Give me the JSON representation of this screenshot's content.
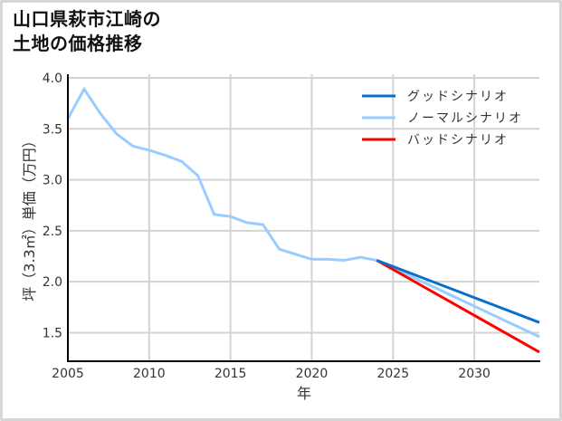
{
  "title_lines": [
    "山口県萩市江崎の",
    "土地の価格推移"
  ],
  "chart_data": {
    "type": "line",
    "title": "山口県萩市江崎の土地の価格推移",
    "xlabel": "年",
    "ylabel": "坪（3.3㎡）単価（万円）",
    "xlim": [
      2005,
      2034
    ],
    "ylim": [
      1.22,
      4.0
    ],
    "xticks": [
      2005,
      2010,
      2015,
      2020,
      2025,
      2030
    ],
    "yticks": [
      1.5,
      2.0,
      2.5,
      3.0,
      3.5,
      4.0
    ],
    "grid": true,
    "legend_position": "upper right",
    "series": [
      {
        "name": "グッドシナリオ",
        "color": "#0a6fc9",
        "x": [
          2024,
          2034
        ],
        "values": [
          2.21,
          1.6
        ]
      },
      {
        "name": "ノーマルシナリオ",
        "color": "#99ccff",
        "x": [
          2005,
          2006,
          2007,
          2008,
          2009,
          2010,
          2011,
          2012,
          2013,
          2014,
          2015,
          2016,
          2017,
          2018,
          2019,
          2020,
          2021,
          2022,
          2023,
          2024,
          2034
        ],
        "values": [
          3.6,
          3.89,
          3.65,
          3.45,
          3.33,
          3.29,
          3.24,
          3.18,
          3.04,
          2.66,
          2.64,
          2.58,
          2.56,
          2.32,
          2.27,
          2.22,
          2.22,
          2.21,
          2.24,
          2.21,
          1.46
        ]
      },
      {
        "name": "バッドシナリオ",
        "color": "#ff0000",
        "x": [
          2024,
          2034
        ],
        "values": [
          2.21,
          1.31
        ]
      }
    ]
  },
  "legend": [
    {
      "label": "グッドシナリオ",
      "color": "#0a6fc9"
    },
    {
      "label": "ノーマルシナリオ",
      "color": "#99ccff"
    },
    {
      "label": "バッドシナリオ",
      "color": "#ff0000"
    }
  ]
}
